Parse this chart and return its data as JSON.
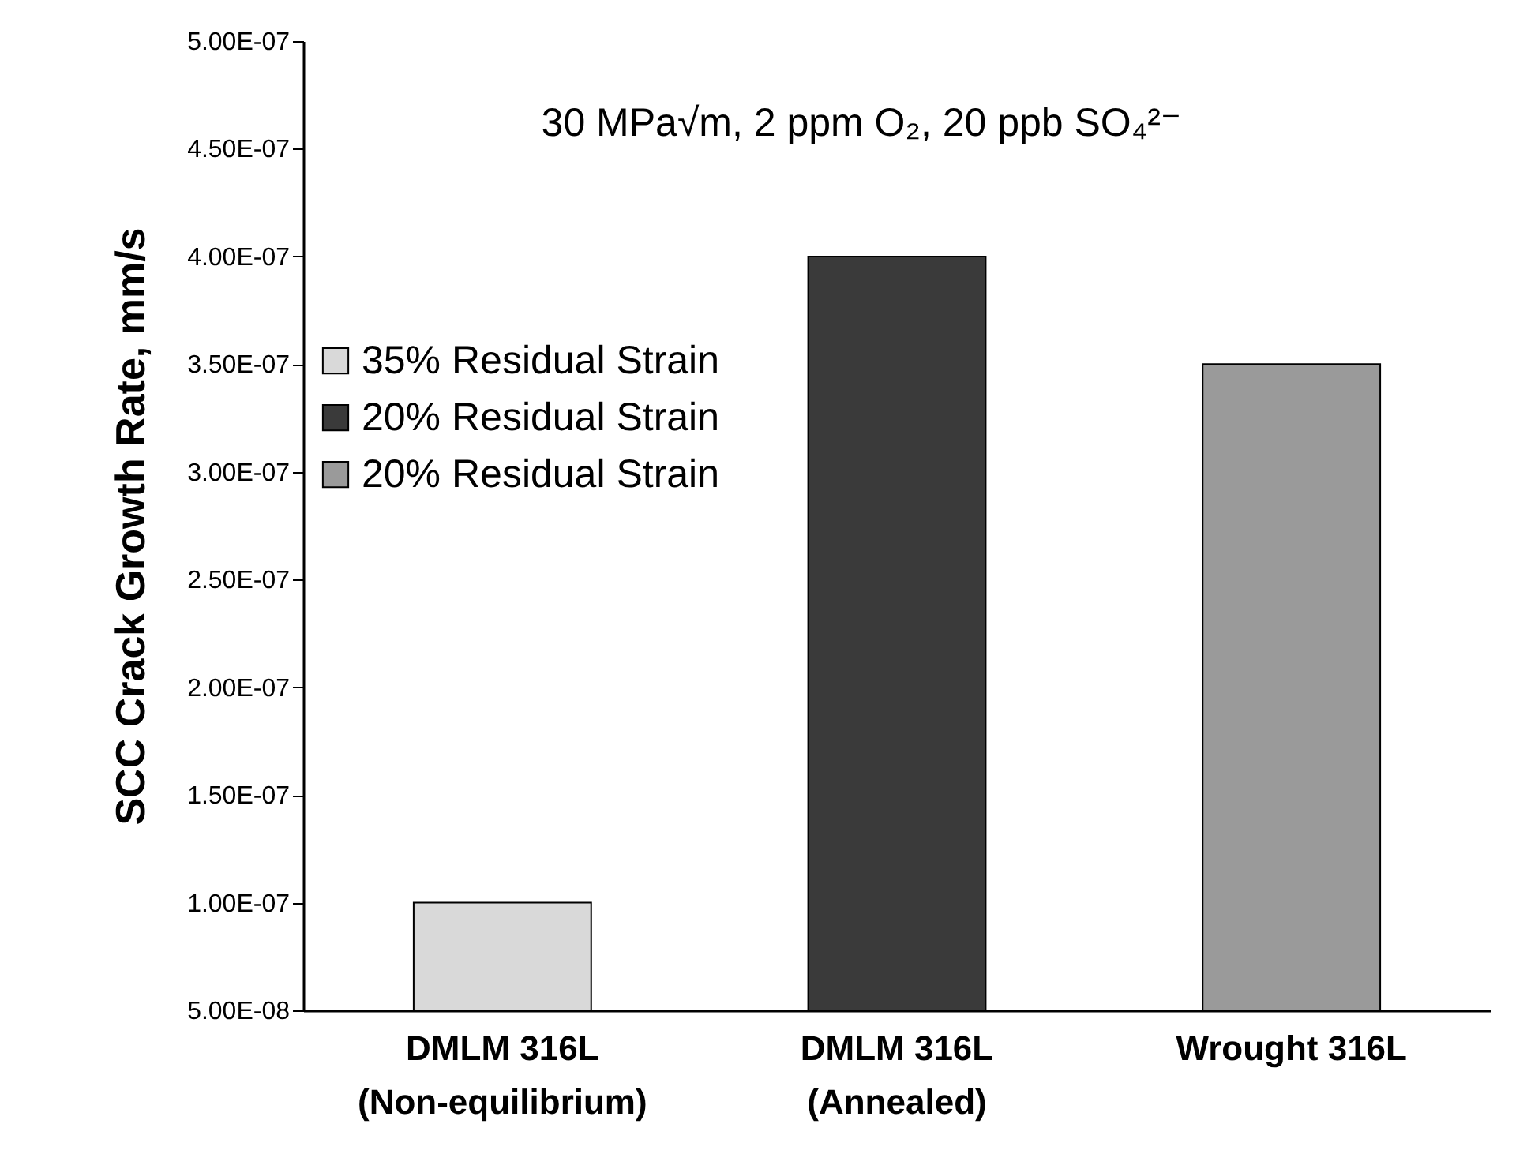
{
  "chart_data": {
    "type": "bar",
    "ylabel": "SCC Crack Growth Rate, mm/s",
    "annotations": [
      "30 MPa√m, 2 ppm O₂, 20 ppb SO₄²⁻"
    ],
    "categories": [
      "DMLM 316L\n(Non-equilibrium)",
      "DMLM 316L\n(Annealed)",
      "Wrought 316L"
    ],
    "series": [
      {
        "name": "35% Residual Strain",
        "color": "#d9d9d9",
        "values": [
          1e-07,
          null,
          null
        ]
      },
      {
        "name": "20% Residual Strain",
        "color": "#3a3a3a",
        "values": [
          null,
          4e-07,
          null
        ]
      },
      {
        "name": "20% Residual Strain",
        "color": "#9a9a9a",
        "values": [
          null,
          null,
          3.5e-07
        ]
      }
    ],
    "ylim": [
      5e-08,
      5e-07
    ],
    "yticks": [
      {
        "value": 5e-08,
        "label": "5.00E-08"
      },
      {
        "value": 1e-07,
        "label": "1.00E-07"
      },
      {
        "value": 1.5e-07,
        "label": "1.50E-07"
      },
      {
        "value": 2e-07,
        "label": "2.00E-07"
      },
      {
        "value": 2.5e-07,
        "label": "2.50E-07"
      },
      {
        "value": 3e-07,
        "label": "3.00E-07"
      },
      {
        "value": 3.5e-07,
        "label": "3.50E-07"
      },
      {
        "value": 4e-07,
        "label": "4.00E-07"
      },
      {
        "value": 4.5e-07,
        "label": "4.50E-07"
      },
      {
        "value": 5e-07,
        "label": "5.00E-07"
      }
    ],
    "legend": "top left",
    "grid": false
  }
}
